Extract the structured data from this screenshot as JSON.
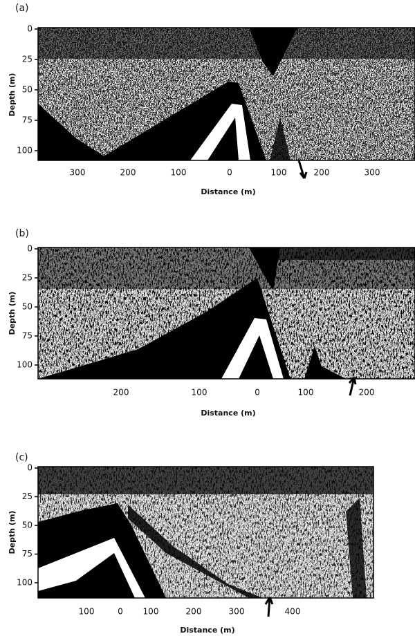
{
  "panels": [
    {
      "label": "(a)",
      "y_axis_label": "Depth (m)",
      "x_axis_label": "Distance (m)",
      "depth_ticks": [
        0,
        25,
        50,
        75,
        100
      ],
      "distance_ticks": [
        300,
        200,
        100,
        0,
        100,
        200,
        300
      ]
    },
    {
      "label": "(b)",
      "y_axis_label": "Depth (m)",
      "x_axis_label": "Distance (m)",
      "depth_ticks": [
        0,
        25,
        50,
        75,
        100
      ],
      "distance_ticks": [
        200,
        100,
        0,
        100,
        200
      ]
    },
    {
      "label": "(c)",
      "y_axis_label": "Depth (m)",
      "x_axis_label": "Distance (m)",
      "depth_ticks": [
        0,
        25,
        50,
        75,
        100
      ],
      "distance_ticks": [
        100,
        0,
        100,
        200,
        300,
        400
      ]
    }
  ]
}
